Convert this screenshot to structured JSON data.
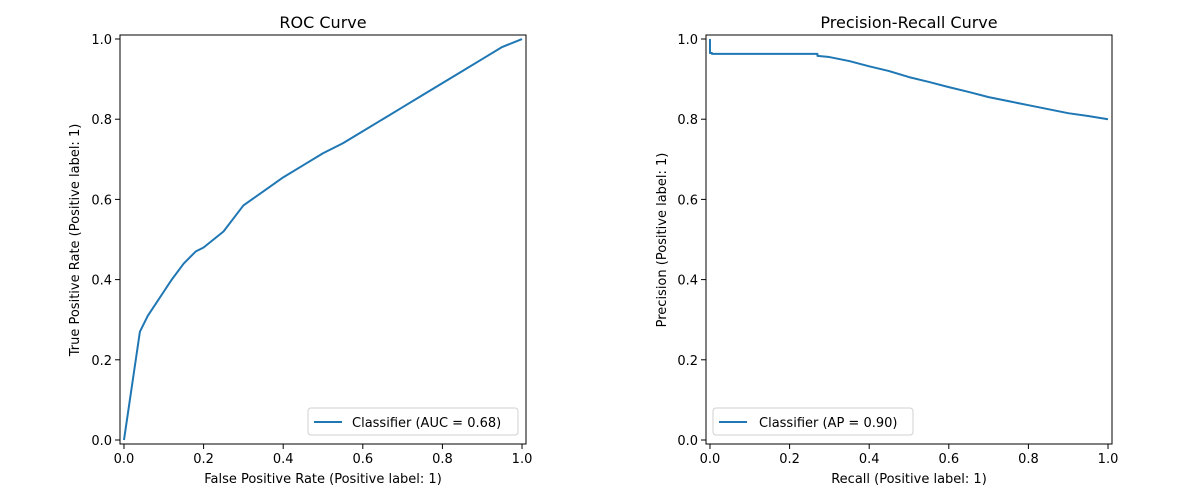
{
  "chart_data": [
    {
      "type": "line",
      "title": "ROC Curve",
      "xlabel": "False Positive Rate (Positive label: 1)",
      "ylabel": "True Positive Rate (Positive label: 1)",
      "xlim": [
        -0.01,
        1.01
      ],
      "ylim": [
        -0.01,
        1.01
      ],
      "xticks": [
        "0.0",
        "0.2",
        "0.4",
        "0.6",
        "0.8",
        "1.0"
      ],
      "yticks": [
        "0.0",
        "0.2",
        "0.4",
        "0.6",
        "0.8",
        "1.0"
      ],
      "grid": false,
      "legend_position": "lower right",
      "series": [
        {
          "name": "Classifier (AUC = 0.68)",
          "color": "#1f77b4",
          "x": [
            0.0,
            0.04,
            0.06,
            0.08,
            0.1,
            0.12,
            0.15,
            0.18,
            0.2,
            0.25,
            0.3,
            0.35,
            0.4,
            0.45,
            0.5,
            0.55,
            0.6,
            0.65,
            0.7,
            0.75,
            0.8,
            0.85,
            0.9,
            0.95,
            1.0
          ],
          "y": [
            0.0,
            0.27,
            0.31,
            0.34,
            0.37,
            0.4,
            0.44,
            0.47,
            0.48,
            0.52,
            0.585,
            0.62,
            0.655,
            0.685,
            0.715,
            0.74,
            0.77,
            0.8,
            0.83,
            0.86,
            0.89,
            0.92,
            0.95,
            0.98,
            1.0
          ]
        }
      ]
    },
    {
      "type": "line",
      "title": "Precision-Recall Curve",
      "xlabel": "Recall (Positive label: 1)",
      "ylabel": "Precision (Positive label: 1)",
      "xlim": [
        -0.01,
        1.01
      ],
      "ylim": [
        -0.01,
        1.01
      ],
      "xticks": [
        "0.0",
        "0.2",
        "0.4",
        "0.6",
        "0.8",
        "1.0"
      ],
      "yticks": [
        "0.0",
        "0.2",
        "0.4",
        "0.6",
        "0.8",
        "1.0"
      ],
      "grid": false,
      "legend_position": "lower left",
      "series": [
        {
          "name": "Classifier (AP = 0.90)",
          "color": "#1f77b4",
          "x": [
            0.0,
            0.0,
            0.005,
            0.005,
            0.27,
            0.27,
            0.3,
            0.35,
            0.4,
            0.45,
            0.5,
            0.55,
            0.6,
            0.65,
            0.7,
            0.75,
            0.8,
            0.85,
            0.9,
            0.95,
            1.0
          ],
          "y": [
            1.0,
            0.965,
            0.965,
            0.963,
            0.963,
            0.958,
            0.955,
            0.945,
            0.932,
            0.92,
            0.905,
            0.893,
            0.88,
            0.868,
            0.855,
            0.845,
            0.835,
            0.825,
            0.815,
            0.808,
            0.8
          ]
        }
      ]
    }
  ]
}
